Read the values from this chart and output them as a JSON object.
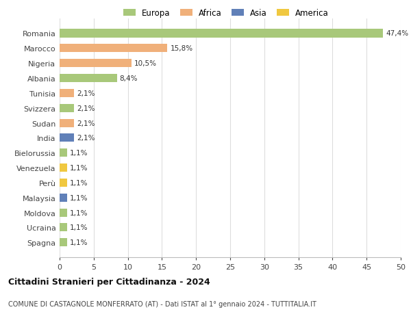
{
  "categories": [
    "Romania",
    "Marocco",
    "Nigeria",
    "Albania",
    "Tunisia",
    "Svizzera",
    "Sudan",
    "India",
    "Bielorussia",
    "Venezuela",
    "Perù",
    "Malaysia",
    "Moldova",
    "Ucraina",
    "Spagna"
  ],
  "values": [
    47.4,
    15.8,
    10.5,
    8.4,
    2.1,
    2.1,
    2.1,
    2.1,
    1.1,
    1.1,
    1.1,
    1.1,
    1.1,
    1.1,
    1.1
  ],
  "labels": [
    "47,4%",
    "15,8%",
    "10,5%",
    "8,4%",
    "2,1%",
    "2,1%",
    "2,1%",
    "2,1%",
    "1,1%",
    "1,1%",
    "1,1%",
    "1,1%",
    "1,1%",
    "1,1%",
    "1,1%"
  ],
  "colors": [
    "#a8c87a",
    "#f0b07a",
    "#f0b07a",
    "#a8c87a",
    "#f0b07a",
    "#a8c87a",
    "#f0b07a",
    "#6080b8",
    "#a8c87a",
    "#f0c840",
    "#f0c840",
    "#6080b8",
    "#a8c87a",
    "#a8c87a",
    "#a8c87a"
  ],
  "legend_labels": [
    "Europa",
    "Africa",
    "Asia",
    "America"
  ],
  "legend_colors": [
    "#a8c87a",
    "#f0b07a",
    "#6080b8",
    "#f0c840"
  ],
  "title": "Cittadini Stranieri per Cittadinanza - 2024",
  "subtitle": "COMUNE DI CASTAGNOLE MONFERRATO (AT) - Dati ISTAT al 1° gennaio 2024 - TUTTITALIA.IT",
  "xlim": [
    0,
    50
  ],
  "xticks": [
    0,
    5,
    10,
    15,
    20,
    25,
    30,
    35,
    40,
    45,
    50
  ],
  "bg_color": "#ffffff",
  "grid_color": "#dddddd",
  "bar_height": 0.55
}
